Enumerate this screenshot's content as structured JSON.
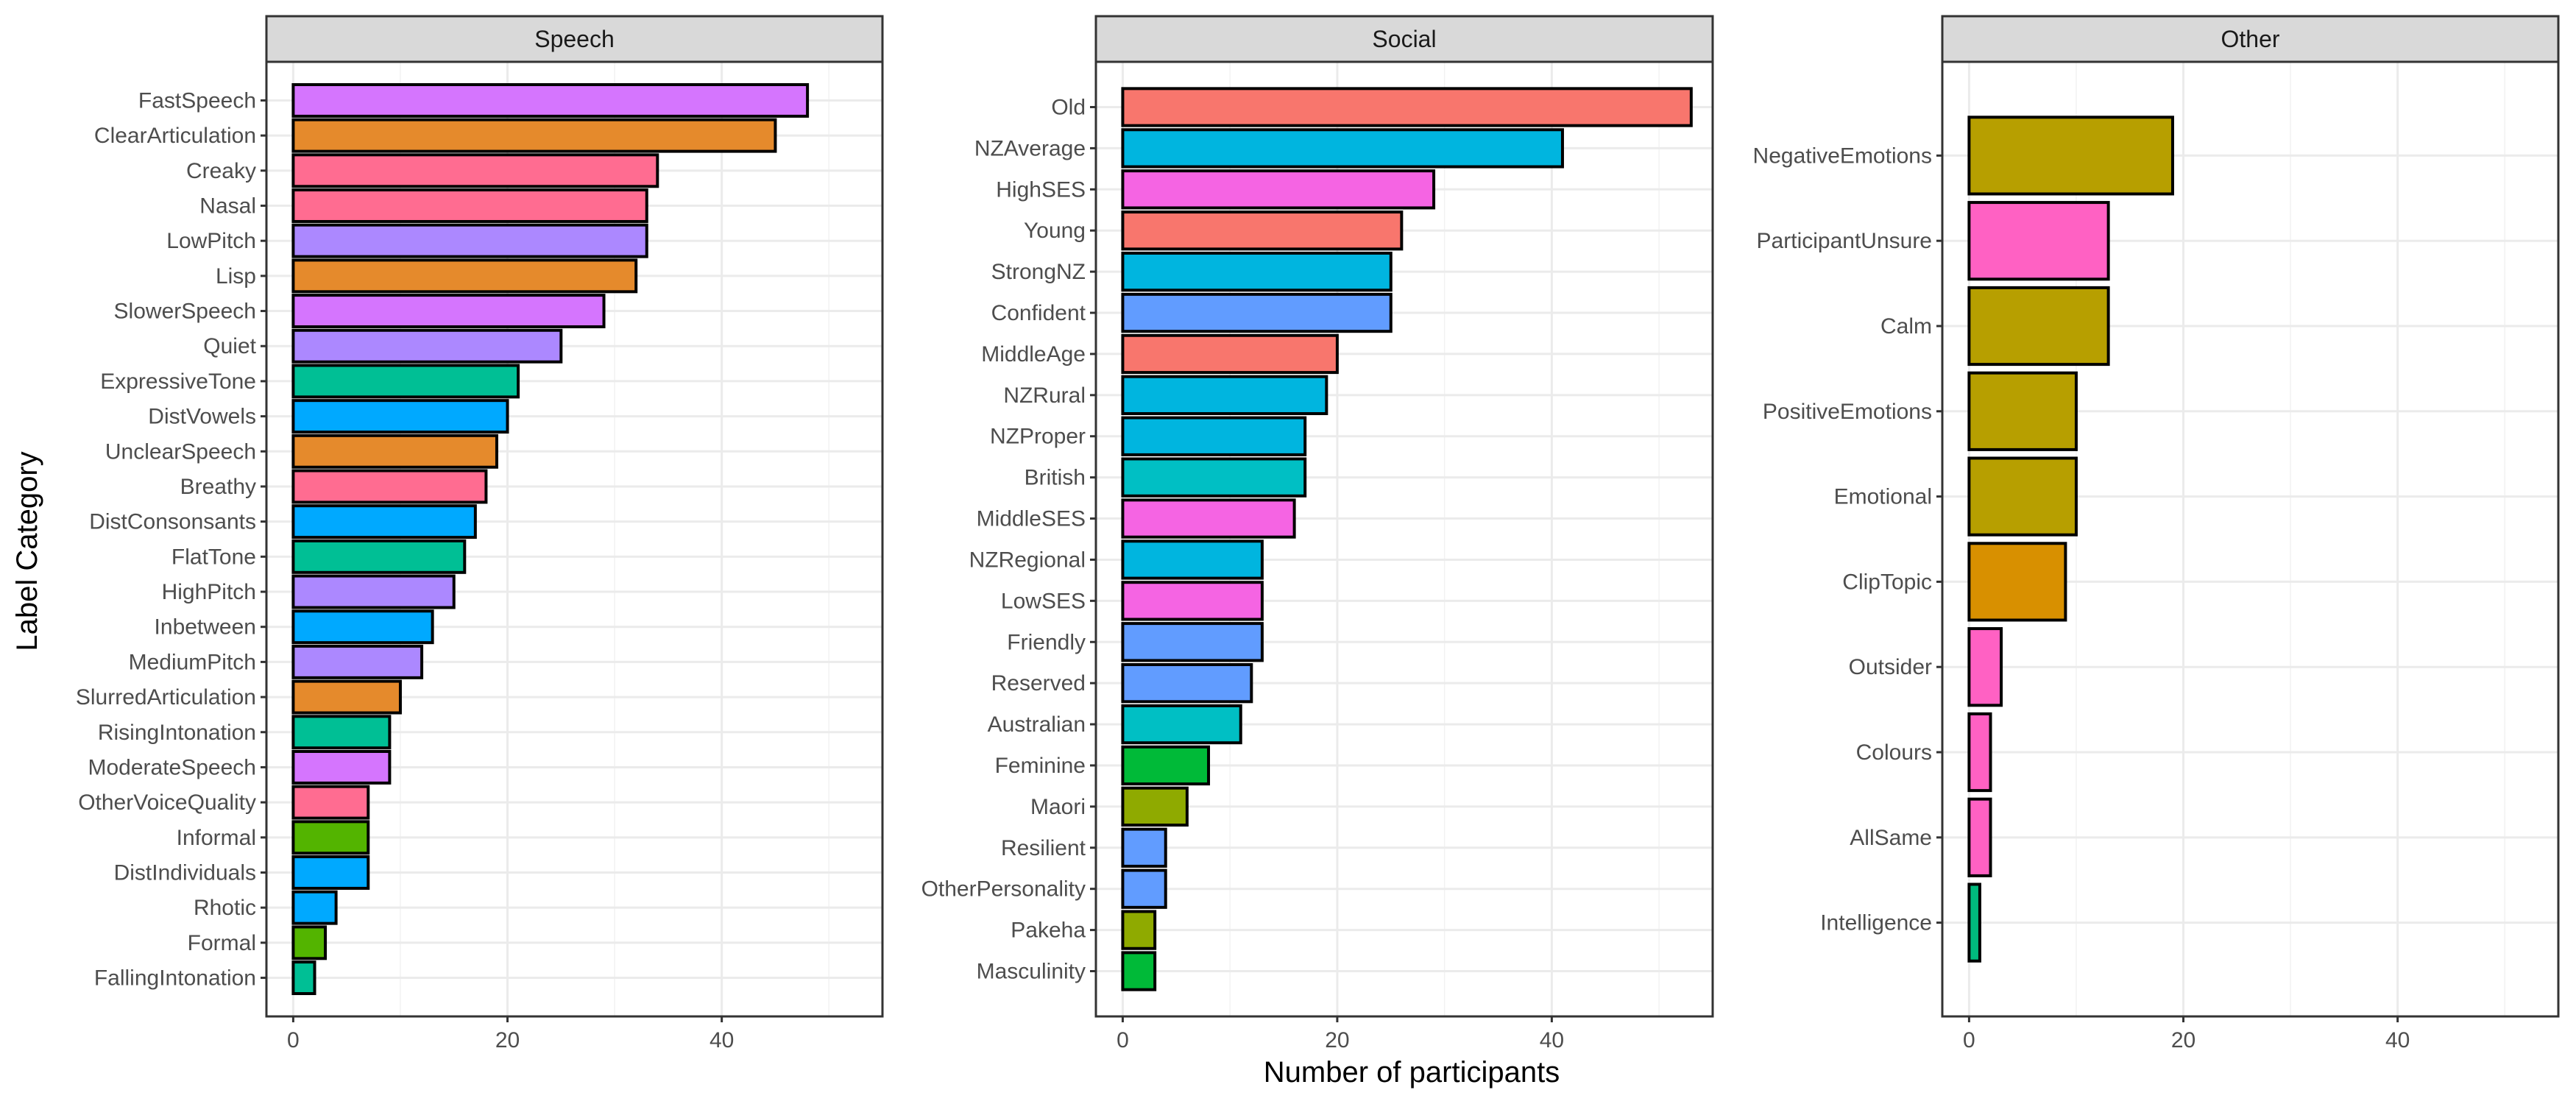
{
  "chart_data": {
    "type": "bar",
    "orientation": "horizontal",
    "xlabel": "Number of participants",
    "ylabel": "Label Category",
    "xlim": [
      -2.5,
      55
    ],
    "x_ticks": [
      0,
      20,
      40
    ],
    "grid": true,
    "legend": "none",
    "panels": [
      {
        "title": "Speech",
        "categories": [
          "FastSpeech",
          "ClearArticulation",
          "Creaky",
          "Nasal",
          "LowPitch",
          "Lisp",
          "SlowerSpeech",
          "Quiet",
          "ExpressiveTone",
          "DistVowels",
          "UnclearSpeech",
          "Breathy",
          "DistConsonsants",
          "FlatTone",
          "HighPitch",
          "Inbetween",
          "MediumPitch",
          "SlurredArticulation",
          "RisingIntonation",
          "ModerateSpeech",
          "OtherVoiceQuality",
          "Informal",
          "DistIndividuals",
          "Rhotic",
          "Formal",
          "FallingIntonation"
        ],
        "values": [
          48,
          45,
          34,
          33,
          33,
          32,
          29,
          25,
          21,
          20,
          19,
          18,
          17,
          16,
          15,
          13,
          12,
          10,
          9,
          9,
          7,
          7,
          7,
          4,
          3,
          2
        ],
        "colors": [
          "#D575FE",
          "#E58A2C",
          "#FF6C91",
          "#FF6C91",
          "#AC88FF",
          "#E58A2C",
          "#D575FE",
          "#AC88FF",
          "#00BF95",
          "#00A9FF",
          "#E58A2C",
          "#FF6C91",
          "#00A9FF",
          "#00BF95",
          "#AC88FF",
          "#00A9FF",
          "#AC88FF",
          "#E58A2C",
          "#00BF95",
          "#D575FE",
          "#FF6C91",
          "#53B400",
          "#00A9FF",
          "#00A9FF",
          "#53B400",
          "#00BF95"
        ]
      },
      {
        "title": "Social",
        "categories": [
          "Old",
          "NZAverage",
          "HighSES",
          "Young",
          "StrongNZ",
          "Confident",
          "MiddleAge",
          "NZRural",
          "NZProper",
          "British",
          "MiddleSES",
          "NZRegional",
          "LowSES",
          "Friendly",
          "Reserved",
          "Australian",
          "Feminine",
          "Maori",
          "Resilient",
          "OtherPersonality",
          "Pakeha",
          "Masculinity"
        ],
        "values": [
          53,
          41,
          29,
          26,
          25,
          25,
          20,
          19,
          17,
          17,
          16,
          13,
          13,
          13,
          12,
          11,
          8,
          6,
          4,
          4,
          3,
          3
        ],
        "colors": [
          "#F8766D",
          "#00B5DF",
          "#F564E3",
          "#F8766D",
          "#00B5DF",
          "#619CFF",
          "#F8766D",
          "#00B5DF",
          "#00B5DF",
          "#00BFC4",
          "#F564E3",
          "#00B5DF",
          "#F564E3",
          "#619CFF",
          "#619CFF",
          "#00BFC4",
          "#00BA38",
          "#8FAA00",
          "#619CFF",
          "#619CFF",
          "#8FAA00",
          "#00BA38"
        ]
      },
      {
        "title": "Other",
        "categories": [
          "NegativeEmotions",
          "ParticipantUnsure",
          "Calm",
          "PositiveEmotions",
          "Emotional",
          "ClipTopic",
          "Outsider",
          "Colours",
          "AllSame",
          "Intelligence"
        ],
        "values": [
          19,
          13,
          13,
          10,
          10,
          9,
          3,
          2,
          2,
          1
        ],
        "colors": [
          "#B79F00",
          "#FF61C3",
          "#B79F00",
          "#B79F00",
          "#B79F00",
          "#D89000",
          "#FF61C3",
          "#FF61C3",
          "#FF61C3",
          "#00BA7D"
        ]
      }
    ]
  }
}
